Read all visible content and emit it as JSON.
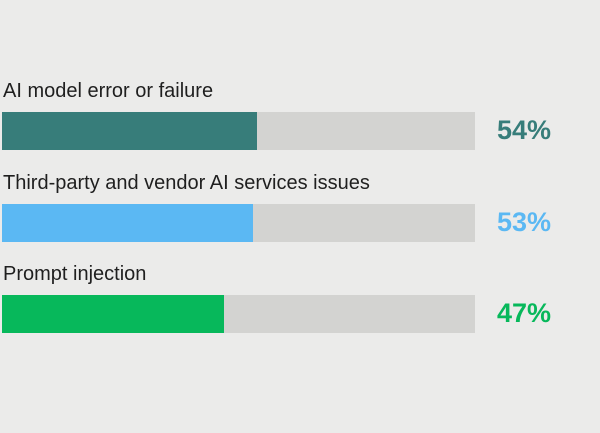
{
  "chart_data": {
    "type": "bar",
    "orientation": "horizontal",
    "categories": [
      "AI model error or failure",
      "Third-party and vendor AI services issues",
      "Prompt injection"
    ],
    "values": [
      54,
      53,
      47
    ],
    "value_labels": [
      "54%",
      "53%",
      "47%"
    ],
    "value_unit": "%",
    "xlim": [
      0,
      100
    ],
    "grid": false,
    "legend": "none",
    "colors": [
      "#377d7a",
      "#5bb8f3",
      "#07b85b"
    ],
    "track_color": "#d3d3d1",
    "background_color": "#ebebea"
  }
}
